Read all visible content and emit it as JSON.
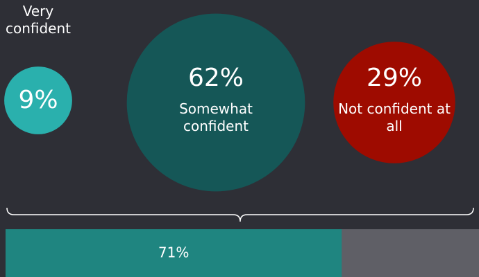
{
  "chart_data": [
    {
      "type": "bubble",
      "categories": [
        "Very confident",
        "Somewhat confident",
        "Not confident at all"
      ],
      "values": [
        9,
        62,
        29
      ],
      "value_labels": [
        "9%",
        "62%",
        "29%"
      ],
      "colors": [
        "#2ab0ad",
        "#155757",
        "#9e0b00"
      ]
    },
    {
      "type": "bar",
      "values": [
        71
      ],
      "value_labels": [
        "71%"
      ],
      "xlim": [
        0,
        100
      ],
      "color": "#1f8580",
      "track_color": "#5f5f66"
    }
  ]
}
